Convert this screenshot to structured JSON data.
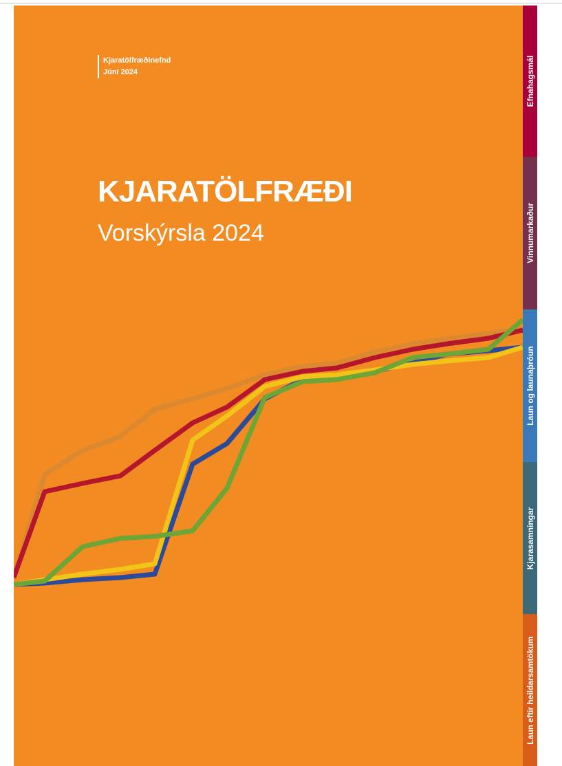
{
  "header": {
    "organization": "Kjaratölfræðinefnd",
    "date": "Júní 2024"
  },
  "title": "KJARATÖLFRÆÐI",
  "subtitle": "Vorskýrsla 2024",
  "tabs": [
    "Efnahagsmál",
    "Vinnumarkaður",
    "Laun og launaþróun",
    "Kjarasamningar",
    "Laun eftir heildarsamtökum"
  ]
}
